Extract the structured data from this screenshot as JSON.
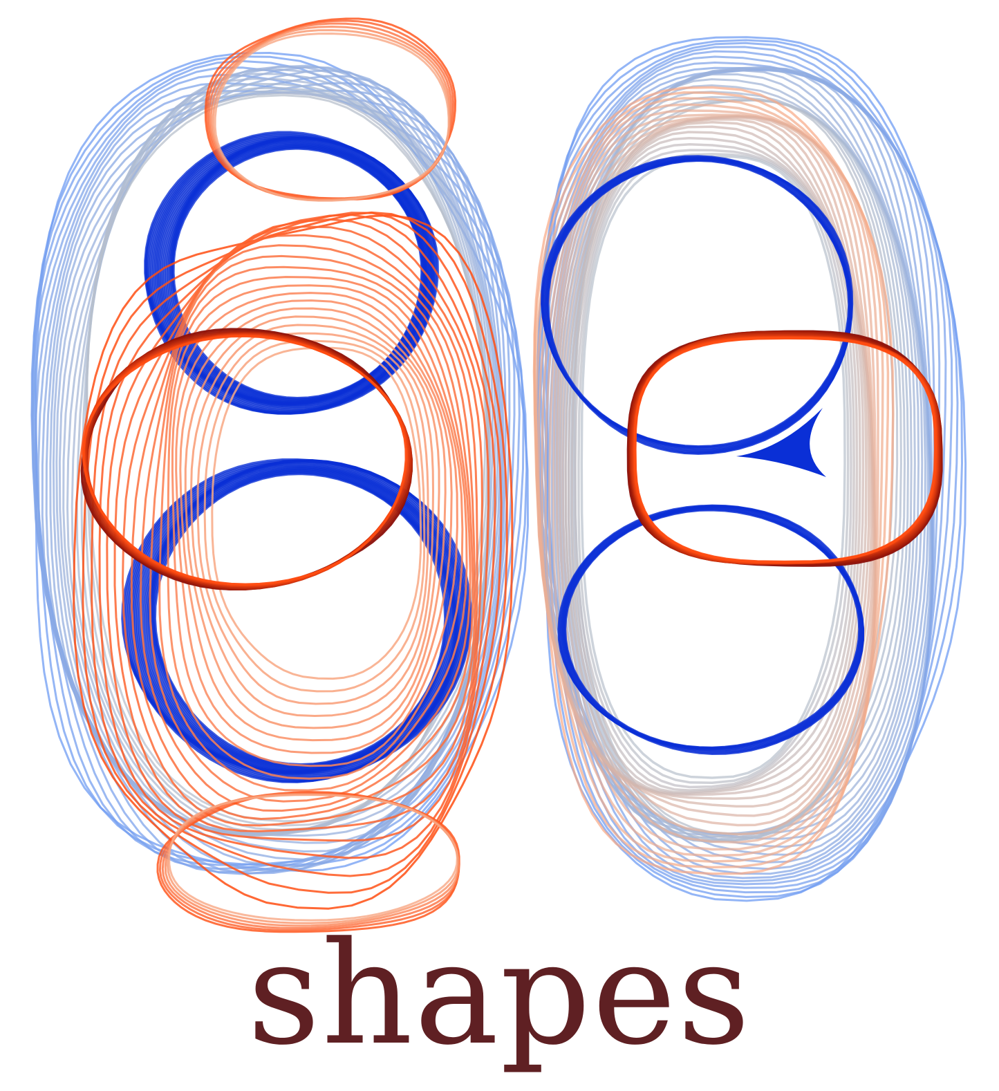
{
  "caption": "shapes",
  "colors": {
    "caption": "#5f2023",
    "blue_dark": "#0a2fd6",
    "blue_light": "#6f9cf3",
    "orange": "#ff4d12",
    "orange_light": "#f8a884",
    "red_dark": "#8a0f08",
    "gray": "#b8c0cc"
  },
  "icon": "contour-lines-logo"
}
